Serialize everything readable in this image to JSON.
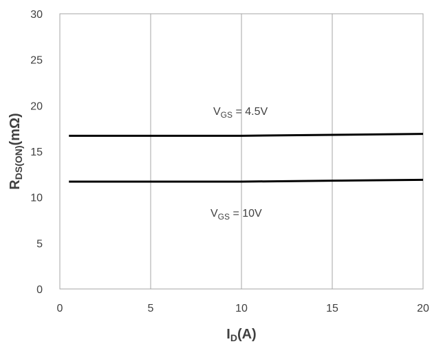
{
  "chart_data": {
    "type": "line",
    "x": [
      0.5,
      2,
      5,
      10,
      15,
      20
    ],
    "series": [
      {
        "color": "#000000",
        "values": [
          16.7,
          16.7,
          16.7,
          16.7,
          16.8,
          16.9
        ]
      },
      {
        "color": "#000000",
        "values": [
          11.7,
          11.7,
          11.7,
          11.7,
          11.8,
          11.9
        ]
      }
    ],
    "xlim": [
      0,
      20
    ],
    "xticks": [
      0,
      5,
      10,
      15,
      20
    ],
    "ylim": [
      0,
      30
    ],
    "yticks": [
      0,
      5,
      10,
      15,
      20,
      25,
      30
    ],
    "grid": true,
    "x_label": [
      "I",
      "D",
      "(A)"
    ],
    "y_label": [
      "R",
      "DS(ON)",
      "(mΩ)"
    ],
    "annotations": [
      [
        "V",
        "GS",
        " = 4.5V"
      ],
      [
        "V",
        "GS",
        " = 10V"
      ]
    ]
  }
}
